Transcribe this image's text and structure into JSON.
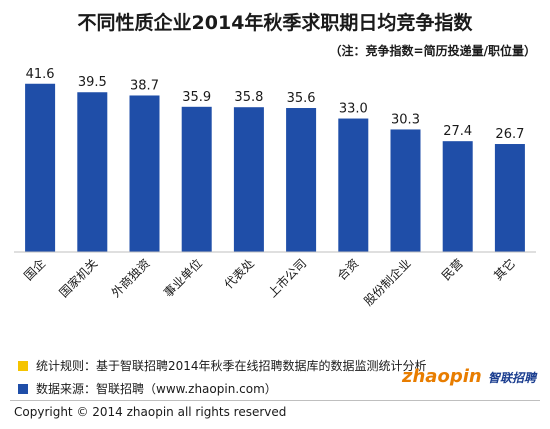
{
  "chart_data": {
    "type": "bar",
    "title": "不同性质企业2014年秋季求职期日均竞争指数",
    "subtitle": "（注：竞争指数=简历投递量/职位量）",
    "categories": [
      "国企",
      "国家机关",
      "外商独资",
      "事业单位",
      "代表处",
      "上市公司",
      "合资",
      "股份制企业",
      "民营",
      "其它"
    ],
    "values": [
      41.6,
      39.5,
      38.7,
      35.9,
      35.8,
      35.6,
      33.0,
      30.3,
      27.4,
      26.7
    ],
    "value_labels": [
      "41.6",
      "39.5",
      "38.7",
      "35.9",
      "35.8",
      "35.6",
      "33.0",
      "30.3",
      "27.4",
      "26.7"
    ],
    "ylim": [
      0,
      45
    ],
    "grid": false,
    "bar_color": "#1f4ea8"
  },
  "legend": {
    "rule_text": "统计规则：基于智联招聘2014年秋季在线招聘数据库的数据监测统计分析",
    "rule_color": "#f5c400",
    "source_text": "数据来源：智联招聘（www.zhaopin.com）",
    "source_color": "#1f4ea8"
  },
  "logo": {
    "brand": "智联招聘",
    "latin": "zhaopin"
  },
  "footer": {
    "copyright": "Copyright © 2014 zhaopin all rights reserved"
  },
  "colors": {
    "axis_bg": "#e6e6e6"
  }
}
